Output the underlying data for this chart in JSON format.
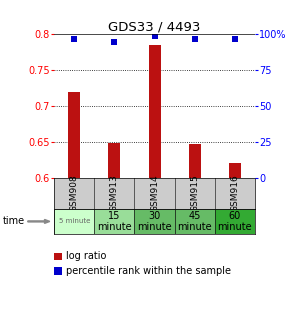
{
  "title": "GDS33 / 4493",
  "samples": [
    "GSM908",
    "GSM913",
    "GSM914",
    "GSM915",
    "GSM916"
  ],
  "time_labels": [
    "5 minute",
    "15\nminute",
    "30\nminute",
    "45\nminute",
    "60\nminute"
  ],
  "time_colors": [
    "#ccffcc",
    "#99dd99",
    "#66bb66",
    "#66bb66",
    "#33aa33"
  ],
  "time_small": [
    true,
    false,
    false,
    false,
    false
  ],
  "log_ratios": [
    0.72,
    0.648,
    0.785,
    0.647,
    0.62
  ],
  "percentile_ranks": [
    97,
    95,
    99,
    97,
    97
  ],
  "bar_color": "#bb1111",
  "dot_color": "#0000cc",
  "ylim": [
    0.6,
    0.8
  ],
  "yticks": [
    0.6,
    0.65,
    0.7,
    0.75,
    0.8
  ],
  "ytick_labels": [
    "0.6",
    "0.65",
    "0.7",
    "0.75",
    "0.8"
  ],
  "y2ticks": [
    0,
    25,
    50,
    75,
    100
  ],
  "y2tick_labels": [
    "0",
    "25",
    "50",
    "75",
    "100%"
  ],
  "background_color": "#ffffff",
  "plot_bg": "#ffffff",
  "sample_bg": "#cccccc"
}
